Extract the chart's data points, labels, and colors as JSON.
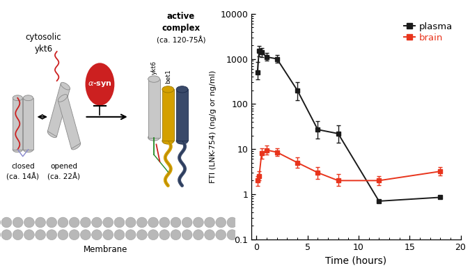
{
  "plasma_x": [
    0.083,
    0.25,
    0.5,
    1.0,
    2.0,
    4.0,
    6.0,
    8.0,
    12.0,
    18.0
  ],
  "plasma_y": [
    500,
    1500,
    1400,
    1100,
    1000,
    200,
    27,
    22,
    0.7,
    0.85
  ],
  "plasma_yerr_low": [
    150,
    350,
    300,
    200,
    180,
    80,
    10,
    8,
    0.0,
    0.0
  ],
  "plasma_yerr_high": [
    350,
    400,
    350,
    250,
    220,
    100,
    15,
    12,
    0.0,
    0.0
  ],
  "brain_x": [
    0.083,
    0.25,
    0.5,
    1.0,
    2.0,
    4.0,
    6.0,
    8.0,
    12.0,
    18.0
  ],
  "brain_y": [
    2.0,
    2.5,
    8.0,
    9.5,
    8.5,
    5.0,
    3.0,
    2.0,
    2.0,
    3.2
  ],
  "brain_yerr_low": [
    0.5,
    0.5,
    2.0,
    2.0,
    1.5,
    1.2,
    0.8,
    0.5,
    0.4,
    0.6
  ],
  "brain_yerr_high": [
    0.5,
    0.7,
    2.5,
    2.5,
    2.0,
    1.5,
    1.0,
    0.8,
    0.5,
    0.8
  ],
  "plasma_color": "#1a1a1a",
  "brain_color": "#e8341c",
  "xlabel": "Time (hours)",
  "ylabel": "FTI (LNK-754) (ng/g or ng/ml)",
  "ylim": [
    0.1,
    10000
  ],
  "xlim": [
    -0.5,
    20
  ],
  "xticks": [
    0,
    5,
    10,
    15,
    20
  ],
  "yticks_log": [
    0.1,
    1,
    10,
    100,
    1000,
    10000
  ],
  "legend_plasma": "plasma",
  "legend_brain": "brain",
  "cyl_color": "#c8c8c8",
  "cyl_edge": "#888888",
  "membrane_color": "#b8b8b8",
  "red_color": "#cc2020",
  "yellow_color": "#d4a000",
  "darkblue_color": "#3a4a6a",
  "green_color": "#228822",
  "arrow_color": "#1a1a1a"
}
